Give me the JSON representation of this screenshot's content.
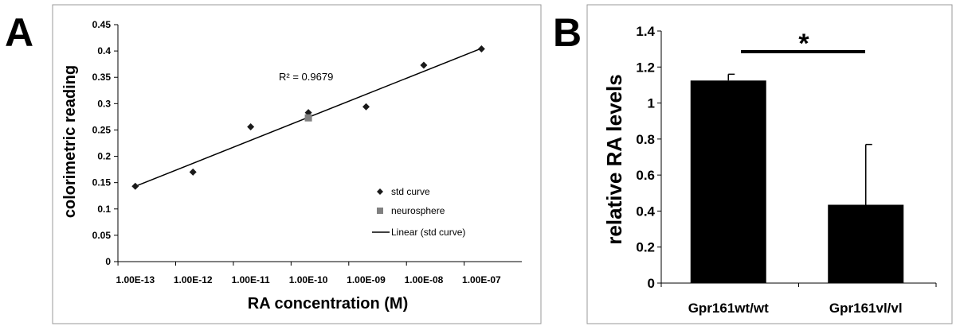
{
  "panels": {
    "a": {
      "letter": "A"
    },
    "b": {
      "letter": "B"
    }
  },
  "chart_data": [
    {
      "type": "scatter",
      "title": "",
      "xlabel": "RA concentration (M)",
      "ylabel": "colorimetric reading",
      "xscale": "log",
      "xlim": [
        5e-14,
        5e-07
      ],
      "ylim": [
        0,
        0.45
      ],
      "x_tick_labels": [
        "1.00E-13",
        "1.00E-12",
        "1.00E-11",
        "1.00E-10",
        "1.00E-09",
        "1.00E-08",
        "1.00E-07"
      ],
      "y_tick_labels": [
        "0",
        "0.05",
        "0.1",
        "0.15",
        "0.2",
        "0.25",
        "0.3",
        "0.35",
        "0.4",
        "0.45"
      ],
      "series": [
        {
          "name": "std curve",
          "marker": "diamond",
          "color": "#1a1a1a",
          "x": [
            1e-13,
            1e-12,
            1e-11,
            1e-10,
            1e-09,
            1e-08,
            1e-07
          ],
          "y": [
            0.143,
            0.17,
            0.256,
            0.283,
            0.294,
            0.373,
            0.404
          ]
        },
        {
          "name": "neurosphere",
          "marker": "square",
          "color": "#808080",
          "x": [
            1e-10
          ],
          "y": [
            0.273
          ]
        },
        {
          "name": "Linear (std curve)",
          "type": "line",
          "color": "#000000",
          "x": [
            1e-13,
            1e-07
          ],
          "y": [
            0.143,
            0.405
          ]
        }
      ],
      "annotation": "R² = 0.9679",
      "legend": [
        "std curve",
        "neurosphere",
        "Linear (std curve)"
      ],
      "legend_position": "bottom-right",
      "grid": false
    },
    {
      "type": "bar",
      "title": "",
      "xlabel": "",
      "ylabel": "relative RA levels",
      "categories": [
        "Gpr161wt/wt",
        "Gpr161vl/vl"
      ],
      "values": [
        1.125,
        0.435
      ],
      "error_bars": [
        0.035,
        0.335
      ],
      "color": "#000000",
      "ylim": [
        0,
        1.4
      ],
      "y_tick_labels": [
        "0",
        "0.2",
        "0.4",
        "0.6",
        "0.8",
        "1",
        "1.2",
        "1.4"
      ],
      "significance": "*",
      "grid": false
    }
  ]
}
